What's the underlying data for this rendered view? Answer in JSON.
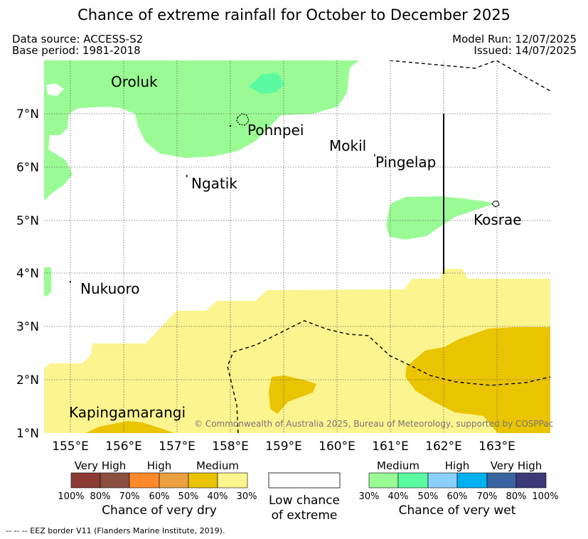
{
  "header": {
    "title": "Chance of extreme rainfall for October to December 2025",
    "data_source": "Data source: ACCESS-S2",
    "base_period": "Base period: 1981-2018",
    "model_run": "Model Run: 12/07/2025",
    "issued": "Issued: 14/07/2025"
  },
  "map": {
    "places": [
      "Oroluk",
      "Pohnpei",
      "Mokil",
      "Pingelap",
      "Ngatik",
      "Kosrae",
      "Nukuoro",
      "Kapingamarangi"
    ],
    "lat_labels": [
      "7°N",
      "6°N",
      "5°N",
      "4°N",
      "3°N",
      "2°N",
      "1°N"
    ],
    "lon_labels": [
      "155°E",
      "156°E",
      "157°E",
      "158°E",
      "159°E",
      "160°E",
      "161°E",
      "162°E",
      "163°E"
    ],
    "copyright": "© Commonwealth of Australia 2025, Bureau of Meteorology, supported by COSPPac",
    "colors": {
      "dry_medium_light": "#fbf48f",
      "dry_medium_dark": "#eac400",
      "wet_medium": "#9afb94",
      "wet_medium_dark": "#5afba0"
    }
  },
  "legend": {
    "dry": {
      "categories": [
        "Very High",
        "High",
        "Medium"
      ],
      "percents": [
        "100%",
        "80%",
        "70%",
        "60%",
        "50%",
        "40%",
        "30%"
      ],
      "colors": [
        "#8b3a33",
        "#8a5040",
        "#ff8a2a",
        "#eaa040",
        "#eac400",
        "#fbf48f"
      ],
      "caption": "Chance of very dry"
    },
    "low": {
      "caption_line1": "Low chance",
      "caption_line2": "of extreme"
    },
    "wet": {
      "categories": [
        "Medium",
        "High",
        "Very High"
      ],
      "percents": [
        "30%",
        "40%",
        "50%",
        "60%",
        "70%",
        "80%",
        "100%"
      ],
      "colors": [
        "#9afb94",
        "#5afba0",
        "#8ad0fb",
        "#00b0f0",
        "#3a64a0",
        "#3a3a78"
      ],
      "caption": "Chance of very wet"
    }
  },
  "footer": {
    "eez": "-- -- -- EEZ border V11 (Flanders Marine Institute, 2019)."
  }
}
